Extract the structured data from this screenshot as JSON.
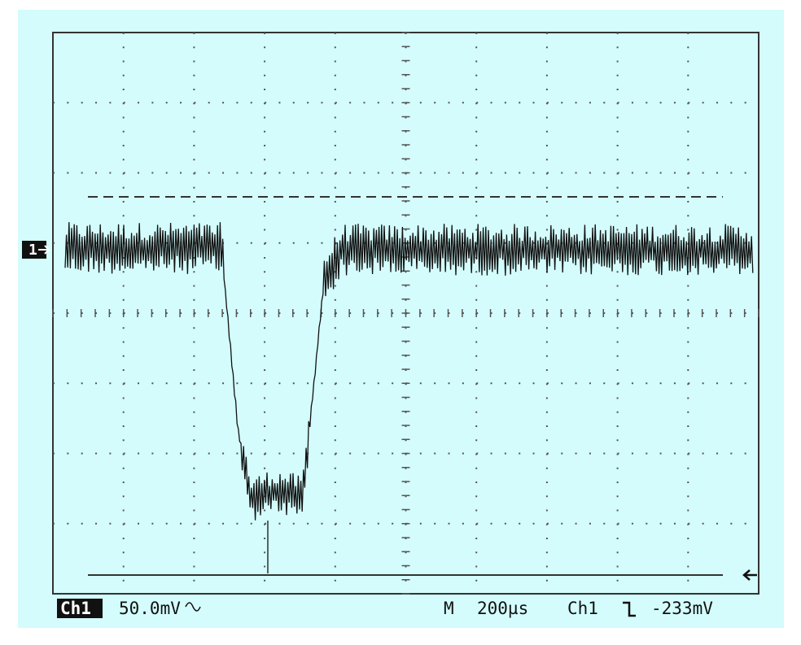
{
  "channel_marker": "1",
  "status": {
    "channel": "Ch1",
    "volts_per_div": "50.0mV",
    "mode": "M",
    "time_per_div": "200µs",
    "trigger_source": "Ch1",
    "trigger_level": "-233mV"
  }
}
